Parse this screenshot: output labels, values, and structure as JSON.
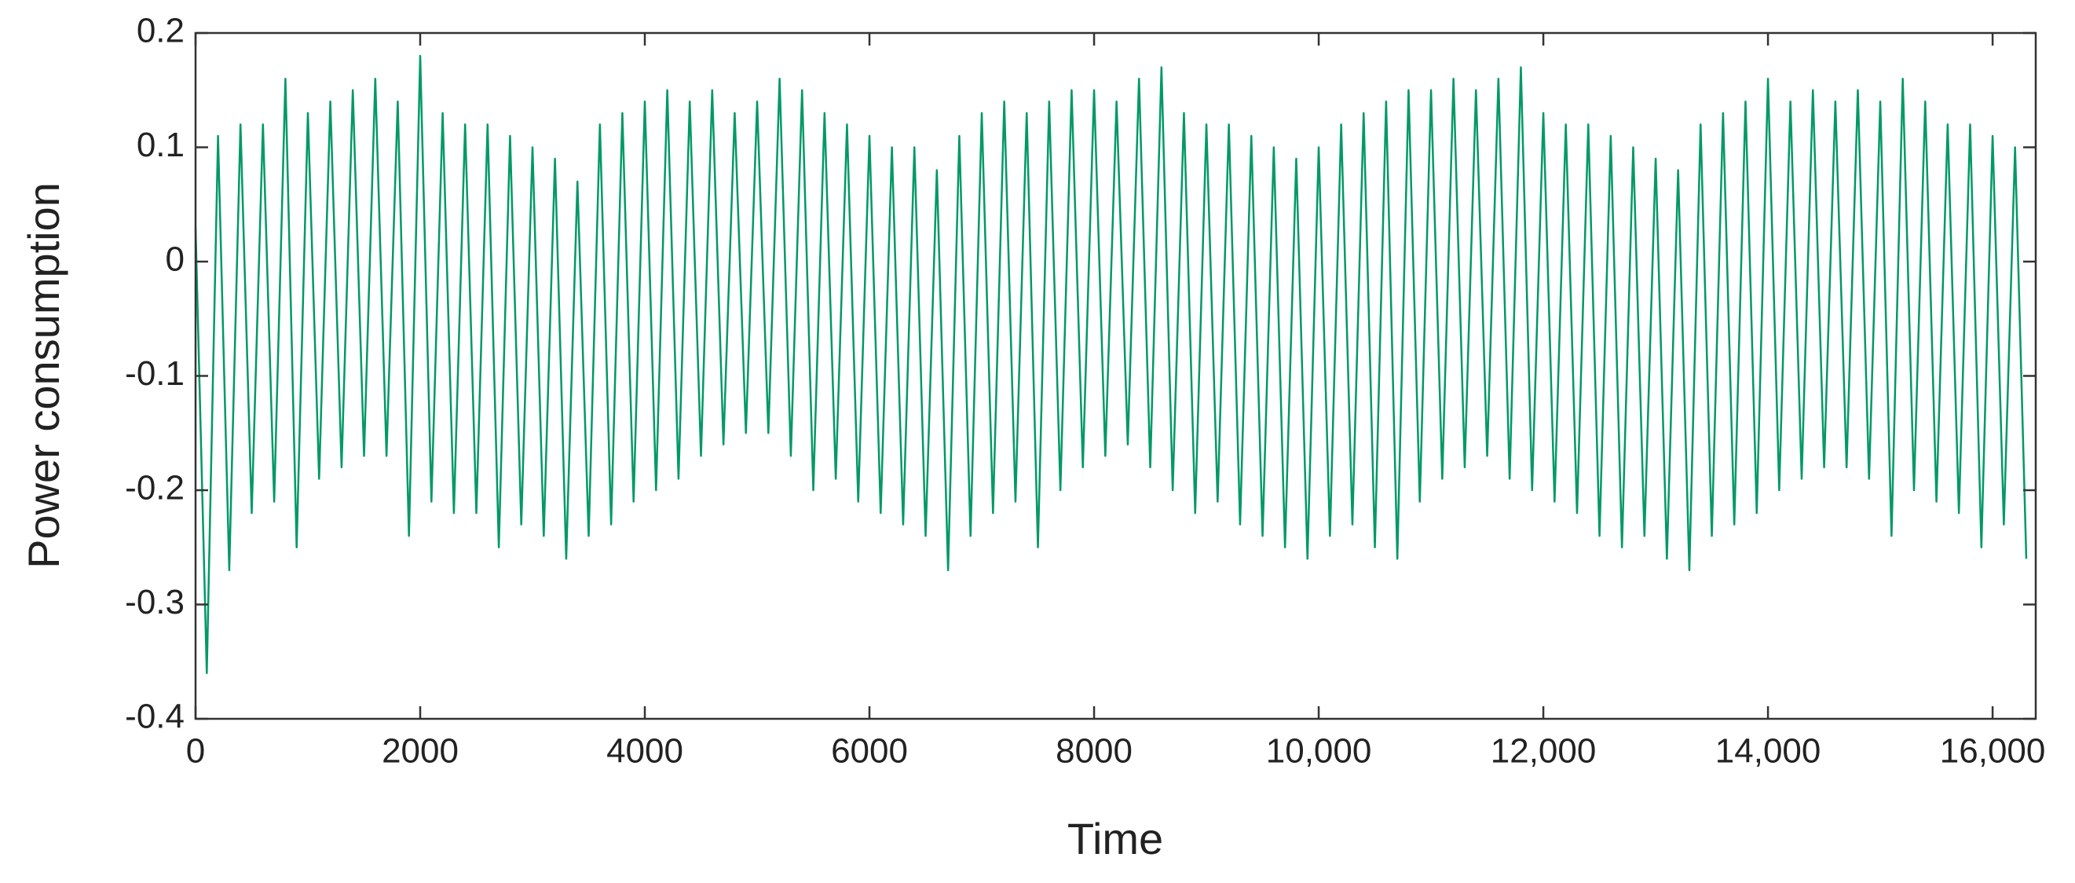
{
  "chart_data": {
    "type": "line",
    "x_label": "Time",
    "y_label": "Power consumption",
    "x": [
      0,
      100,
      200,
      300,
      400,
      500,
      600,
      700,
      800,
      900,
      1000,
      1100,
      1200,
      1300,
      1400,
      1500,
      1600,
      1700,
      1800,
      1900,
      2000,
      2100,
      2200,
      2300,
      2400,
      2500,
      2600,
      2700,
      2800,
      2900,
      3000,
      3100,
      3200,
      3300,
      3400,
      3500,
      3600,
      3700,
      3800,
      3900,
      4000,
      4100,
      4200,
      4300,
      4400,
      4500,
      4600,
      4700,
      4800,
      4900,
      5000,
      5100,
      5200,
      5300,
      5400,
      5500,
      5600,
      5700,
      5800,
      5900,
      6000,
      6100,
      6200,
      6300,
      6400,
      6500,
      6600,
      6700,
      6800,
      6900,
      7000,
      7100,
      7200,
      7300,
      7400,
      7500,
      7600,
      7700,
      7800,
      7900,
      8000,
      8100,
      8200,
      8300,
      8400,
      8500,
      8600,
      8700,
      8800,
      8900,
      9000,
      9100,
      9200,
      9300,
      9400,
      9500,
      9600,
      9700,
      9800,
      9900,
      10000,
      10100,
      10200,
      10300,
      10400,
      10500,
      10600,
      10700,
      10800,
      10900,
      11000,
      11100,
      11200,
      11300,
      11400,
      11500,
      11600,
      11700,
      11800,
      11900,
      12000,
      12100,
      12200,
      12300,
      12400,
      12500,
      12600,
      12700,
      12800,
      12900,
      13000,
      13100,
      13200,
      13300,
      13400,
      13500,
      13600,
      13700,
      13800,
      13900,
      14000,
      14100,
      14200,
      14300,
      14400,
      14500,
      14600,
      14700,
      14800,
      14900,
      15000,
      15100,
      15200,
      15300,
      15400,
      15500,
      15600,
      15700,
      15800,
      15900,
      16000,
      16100,
      16200,
      16300
    ],
    "series": [
      {
        "color": "#009966",
        "values": [
          0.03,
          -0.36,
          0.11,
          -0.27,
          0.12,
          -0.22,
          0.12,
          -0.21,
          0.16,
          -0.25,
          0.13,
          -0.19,
          0.14,
          -0.18,
          0.15,
          -0.17,
          0.16,
          -0.17,
          0.14,
          -0.24,
          0.18,
          -0.21,
          0.13,
          -0.22,
          0.12,
          -0.22,
          0.12,
          -0.25,
          0.11,
          -0.23,
          0.1,
          -0.24,
          0.09,
          -0.26,
          0.07,
          -0.24,
          0.12,
          -0.23,
          0.13,
          -0.21,
          0.14,
          -0.2,
          0.15,
          -0.19,
          0.14,
          -0.17,
          0.15,
          -0.16,
          0.13,
          -0.15,
          0.14,
          -0.15,
          0.16,
          -0.17,
          0.15,
          -0.2,
          0.13,
          -0.19,
          0.12,
          -0.21,
          0.11,
          -0.22,
          0.1,
          -0.23,
          0.1,
          -0.24,
          0.08,
          -0.27,
          0.11,
          -0.24,
          0.13,
          -0.22,
          0.14,
          -0.21,
          0.13,
          -0.25,
          0.14,
          -0.2,
          0.15,
          -0.18,
          0.15,
          -0.17,
          0.14,
          -0.16,
          0.16,
          -0.18,
          0.17,
          -0.2,
          0.13,
          -0.22,
          0.12,
          -0.21,
          0.12,
          -0.23,
          0.11,
          -0.24,
          0.1,
          -0.25,
          0.09,
          -0.26,
          0.1,
          -0.24,
          0.12,
          -0.23,
          0.13,
          -0.25,
          0.14,
          -0.26,
          0.15,
          -0.21,
          0.15,
          -0.19,
          0.16,
          -0.18,
          0.15,
          -0.17,
          0.16,
          -0.19,
          0.17,
          -0.2,
          0.13,
          -0.21,
          0.12,
          -0.22,
          0.12,
          -0.24,
          0.11,
          -0.25,
          0.1,
          -0.24,
          0.09,
          -0.26,
          0.08,
          -0.27,
          0.12,
          -0.24,
          0.13,
          -0.23,
          0.14,
          -0.22,
          0.16,
          -0.2,
          0.14,
          -0.19,
          0.15,
          -0.18,
          0.14,
          -0.18,
          0.15,
          -0.19,
          0.14,
          -0.24,
          0.16,
          -0.2,
          0.14,
          -0.21,
          0.12,
          -0.22,
          0.12,
          -0.25,
          0.11,
          -0.23,
          0.1,
          -0.26
        ]
      }
    ],
    "xlim": [
      0,
      16384
    ],
    "ylim": [
      -0.4,
      0.2
    ],
    "xticks": [
      0,
      2000,
      4000,
      6000,
      8000,
      {
        "value": 10000,
        "label": "10,000"
      },
      {
        "value": 12000,
        "label": "12,000"
      },
      {
        "value": 14000,
        "label": "14,000"
      },
      {
        "value": 16000,
        "label": "16,000"
      }
    ],
    "yticks": [
      -0.4,
      -0.3,
      -0.2,
      -0.1,
      0,
      0.1,
      0.2
    ]
  }
}
